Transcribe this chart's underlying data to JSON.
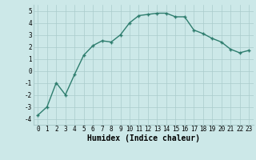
{
  "x": [
    0,
    1,
    2,
    3,
    4,
    5,
    6,
    7,
    8,
    9,
    10,
    11,
    12,
    13,
    14,
    15,
    16,
    17,
    18,
    19,
    20,
    21,
    22,
    23
  ],
  "y": [
    -3.7,
    -3.0,
    -1.0,
    -2.0,
    -0.3,
    1.3,
    2.1,
    2.5,
    2.4,
    3.0,
    4.0,
    4.6,
    4.7,
    4.8,
    4.8,
    4.5,
    4.5,
    3.4,
    3.1,
    2.7,
    2.4,
    1.8,
    1.5,
    1.7
  ],
  "line_color": "#2e7d6e",
  "marker": "+",
  "marker_color": "#2e7d6e",
  "bg_color": "#cce8e8",
  "grid_color": "#aacccc",
  "xlabel": "Humidex (Indice chaleur)",
  "xlim": [
    -0.5,
    23.5
  ],
  "ylim": [
    -4.5,
    5.5
  ],
  "yticks": [
    -4,
    -3,
    -2,
    -1,
    0,
    1,
    2,
    3,
    4,
    5
  ],
  "xticks": [
    0,
    1,
    2,
    3,
    4,
    5,
    6,
    7,
    8,
    9,
    10,
    11,
    12,
    13,
    14,
    15,
    16,
    17,
    18,
    19,
    20,
    21,
    22,
    23
  ],
  "tick_fontsize": 5.5,
  "xlabel_fontsize": 7.0,
  "linewidth": 1.0,
  "markersize": 3.5
}
